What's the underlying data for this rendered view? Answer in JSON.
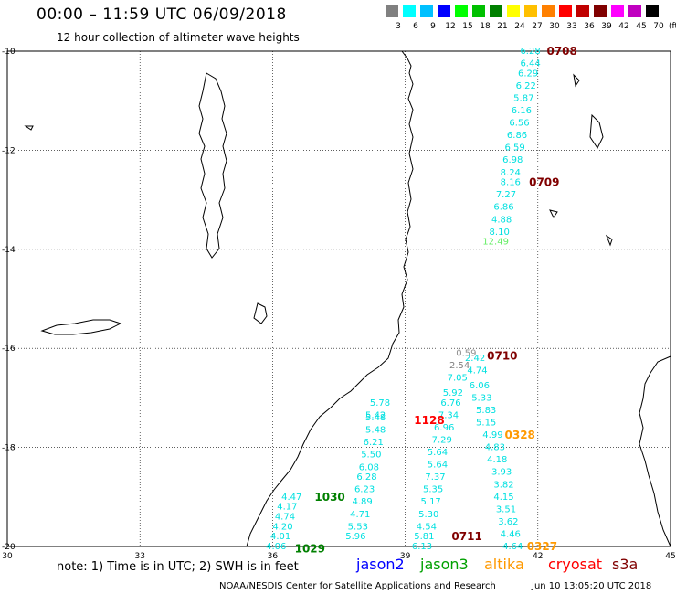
{
  "header": {
    "title": "00:00 – 11:59 UTC 06/09/2018",
    "subtitle": "12 hour collection of altimeter wave heights"
  },
  "colorbar": {
    "labels": [
      "3",
      "6",
      "9",
      "12",
      "15",
      "18",
      "21",
      "24",
      "27",
      "30",
      "33",
      "36",
      "39",
      "42",
      "45",
      "70"
    ],
    "unit": "(ft)",
    "colors": [
      "#808080",
      "#00ffff",
      "#00c0ff",
      "#0000ff",
      "#00ff00",
      "#00c000",
      "#008000",
      "#ffff00",
      "#ffc000",
      "#ff8000",
      "#ff0000",
      "#c00000",
      "#800000",
      "#ff00ff",
      "#c000c0",
      "#000000"
    ]
  },
  "axes": {
    "x_ticks": [
      "30",
      "33",
      "36",
      "39",
      "42",
      "45"
    ],
    "y_ticks": [
      "-10",
      "-12",
      "-14",
      "-16",
      "-18",
      "-20"
    ],
    "lon_range": [
      30,
      45
    ],
    "lat_range": [
      -20,
      -10
    ]
  },
  "wave_labels": [
    {
      "text": "6.28",
      "lon": 41.6,
      "lat": -10.0,
      "color": "#00e0e0"
    },
    {
      "text": "6.44",
      "lon": 41.6,
      "lat": -10.25,
      "color": "#00e0e0"
    },
    {
      "text": "6.29",
      "lon": 41.55,
      "lat": -10.45,
      "color": "#00e0e0"
    },
    {
      "text": "6.22",
      "lon": 41.5,
      "lat": -10.7,
      "color": "#00e0e0"
    },
    {
      "text": "5.87",
      "lon": 41.45,
      "lat": -10.95,
      "color": "#00e0e0"
    },
    {
      "text": "6.16",
      "lon": 41.4,
      "lat": -11.2,
      "color": "#00e0e0"
    },
    {
      "text": "6.56",
      "lon": 41.35,
      "lat": -11.45,
      "color": "#00e0e0"
    },
    {
      "text": "6.86",
      "lon": 41.3,
      "lat": -11.7,
      "color": "#00e0e0"
    },
    {
      "text": "6.59",
      "lon": 41.25,
      "lat": -11.95,
      "color": "#00e0e0"
    },
    {
      "text": "6.98",
      "lon": 41.2,
      "lat": -12.2,
      "color": "#00e0e0"
    },
    {
      "text": "8.24",
      "lon": 41.15,
      "lat": -12.45,
      "color": "#00e0e0"
    },
    {
      "text": "8.16",
      "lon": 41.15,
      "lat": -12.65,
      "color": "#00e0e0"
    },
    {
      "text": "7.27",
      "lon": 41.05,
      "lat": -12.9,
      "color": "#00e0e0"
    },
    {
      "text": "6.86",
      "lon": 41.0,
      "lat": -13.15,
      "color": "#00e0e0"
    },
    {
      "text": "4.88",
      "lon": 40.95,
      "lat": -13.4,
      "color": "#00e0e0"
    },
    {
      "text": "8.10",
      "lon": 40.9,
      "lat": -13.65,
      "color": "#00e0e0"
    },
    {
      "text": "12.49",
      "lon": 40.75,
      "lat": -13.85,
      "color": "#66ee66"
    },
    {
      "text": "0.59",
      "lon": 40.15,
      "lat": -16.1,
      "color": "#909090"
    },
    {
      "text": "2.42",
      "lon": 40.35,
      "lat": -16.2,
      "color": "#00e0e0"
    },
    {
      "text": "2.54",
      "lon": 40.0,
      "lat": -16.35,
      "color": "#808080"
    },
    {
      "text": "4.74",
      "lon": 40.4,
      "lat": -16.45,
      "color": "#00e0e0"
    },
    {
      "text": "7.05",
      "lon": 39.95,
      "lat": -16.6,
      "color": "#00e0e0"
    },
    {
      "text": "6.06",
      "lon": 40.45,
      "lat": -16.75,
      "color": "#00e0e0"
    },
    {
      "text": "5.92",
      "lon": 39.85,
      "lat": -16.9,
      "color": "#00e0e0"
    },
    {
      "text": "5.33",
      "lon": 40.5,
      "lat": -17.0,
      "color": "#00e0e0"
    },
    {
      "text": "6.76",
      "lon": 39.8,
      "lat": -17.1,
      "color": "#00e0e0"
    },
    {
      "text": "5.83",
      "lon": 40.6,
      "lat": -17.25,
      "color": "#00e0e0"
    },
    {
      "text": "7.34",
      "lon": 39.75,
      "lat": -17.35,
      "color": "#00e0e0"
    },
    {
      "text": "5.15",
      "lon": 40.6,
      "lat": -17.5,
      "color": "#00e0e0"
    },
    {
      "text": "6.96",
      "lon": 39.65,
      "lat": -17.6,
      "color": "#00e0e0"
    },
    {
      "text": "4.99",
      "lon": 40.75,
      "lat": -17.75,
      "color": "#00e0e0"
    },
    {
      "text": "7.29",
      "lon": 39.6,
      "lat": -17.85,
      "color": "#00e0e0"
    },
    {
      "text": "4.83",
      "lon": 40.8,
      "lat": -18.0,
      "color": "#00e0e0"
    },
    {
      "text": "5.64",
      "lon": 39.5,
      "lat": -18.1,
      "color": "#00e0e0"
    },
    {
      "text": "4.18",
      "lon": 40.85,
      "lat": -18.25,
      "color": "#00e0e0"
    },
    {
      "text": "5.64",
      "lon": 39.5,
      "lat": -18.35,
      "color": "#00e0e0"
    },
    {
      "text": "3.93",
      "lon": 40.95,
      "lat": -18.5,
      "color": "#00e0e0"
    },
    {
      "text": "7.37",
      "lon": 39.45,
      "lat": -18.6,
      "color": "#00e0e0"
    },
    {
      "text": "3.82",
      "lon": 41.0,
      "lat": -18.75,
      "color": "#00e0e0"
    },
    {
      "text": "5.35",
      "lon": 39.4,
      "lat": -18.85,
      "color": "#00e0e0"
    },
    {
      "text": "4.15",
      "lon": 41.0,
      "lat": -19.0,
      "color": "#00e0e0"
    },
    {
      "text": "5.17",
      "lon": 39.35,
      "lat": -19.1,
      "color": "#00e0e0"
    },
    {
      "text": "3.51",
      "lon": 41.05,
      "lat": -19.25,
      "color": "#00e0e0"
    },
    {
      "text": "5.30",
      "lon": 39.3,
      "lat": -19.35,
      "color": "#00e0e0"
    },
    {
      "text": "3.62",
      "lon": 41.1,
      "lat": -19.5,
      "color": "#00e0e0"
    },
    {
      "text": "4.54",
      "lon": 39.25,
      "lat": -19.6,
      "color": "#00e0e0"
    },
    {
      "text": "4.46",
      "lon": 41.15,
      "lat": -19.75,
      "color": "#00e0e0"
    },
    {
      "text": "5.81",
      "lon": 39.2,
      "lat": -19.8,
      "color": "#00e0e0"
    },
    {
      "text": "4.64",
      "lon": 41.2,
      "lat": -20.0,
      "color": "#00e0e0"
    },
    {
      "text": "6.13",
      "lon": 39.15,
      "lat": -20.0,
      "color": "#00e0e0"
    },
    {
      "text": "5.78",
      "lon": 38.2,
      "lat": -17.1,
      "color": "#00e0e0"
    },
    {
      "text": "5.42",
      "lon": 38.1,
      "lat": -17.35,
      "color": "#00e0e0"
    },
    {
      "text": "5.48",
      "lon": 38.1,
      "lat": -17.4,
      "color": "#00e0e0"
    },
    {
      "text": "5.48",
      "lon": 38.1,
      "lat": -17.65,
      "color": "#00e0e0"
    },
    {
      "text": "6.21",
      "lon": 38.05,
      "lat": -17.9,
      "color": "#00e0e0"
    },
    {
      "text": "5.50",
      "lon": 38.0,
      "lat": -18.15,
      "color": "#00e0e0"
    },
    {
      "text": "6.08",
      "lon": 37.95,
      "lat": -18.4,
      "color": "#00e0e0"
    },
    {
      "text": "6.28",
      "lon": 37.9,
      "lat": -18.6,
      "color": "#00e0e0"
    },
    {
      "text": "6.23",
      "lon": 37.85,
      "lat": -18.85,
      "color": "#00e0e0"
    },
    {
      "text": "4.89",
      "lon": 37.8,
      "lat": -19.1,
      "color": "#00e0e0"
    },
    {
      "text": "4.71",
      "lon": 37.75,
      "lat": -19.35,
      "color": "#00e0e0"
    },
    {
      "text": "5.53",
      "lon": 37.7,
      "lat": -19.6,
      "color": "#00e0e0"
    },
    {
      "text": "5.96",
      "lon": 37.65,
      "lat": -19.8,
      "color": "#00e0e0"
    },
    {
      "text": "4.47",
      "lon": 36.2,
      "lat": -19.0,
      "color": "#00e0e0"
    },
    {
      "text": "4.17",
      "lon": 36.1,
      "lat": -19.2,
      "color": "#00e0e0"
    },
    {
      "text": "4.74",
      "lon": 36.05,
      "lat": -19.4,
      "color": "#00e0e0"
    },
    {
      "text": "4.20",
      "lon": 36.0,
      "lat": -19.6,
      "color": "#00e0e0"
    },
    {
      "text": "4.01",
      "lon": 35.95,
      "lat": -19.8,
      "color": "#00e0e0"
    },
    {
      "text": "4.06",
      "lon": 35.85,
      "lat": -20.0,
      "color": "#00e0e0"
    }
  ],
  "time_labels": [
    {
      "text": "0708",
      "lon": 42.2,
      "lat": -10.0,
      "color": "#800000"
    },
    {
      "text": "0709",
      "lon": 41.8,
      "lat": -12.65,
      "color": "#800000"
    },
    {
      "text": "0710",
      "lon": 40.85,
      "lat": -16.15,
      "color": "#800000"
    },
    {
      "text": "1128",
      "lon": 39.2,
      "lat": -17.45,
      "color": "#ff0000"
    },
    {
      "text": "0328",
      "lon": 41.25,
      "lat": -17.75,
      "color": "#ff9900"
    },
    {
      "text": "1030",
      "lon": 36.95,
      "lat": -19.0,
      "color": "#008000"
    },
    {
      "text": "0711",
      "lon": 40.05,
      "lat": -19.8,
      "color": "#800000"
    },
    {
      "text": "1029",
      "lon": 36.5,
      "lat": -20.05,
      "color": "#008000"
    },
    {
      "text": "0327",
      "lon": 41.75,
      "lat": -20.0,
      "color": "#ff9900"
    }
  ],
  "footer": {
    "note": "note: 1) Time is in UTC; 2) SWH is in feet",
    "legend": [
      {
        "label": "jason2",
        "color": "#0000ff"
      },
      {
        "label": "jason3",
        "color": "#00a000"
      },
      {
        "label": "altika",
        "color": "#ff9900"
      },
      {
        "label": "cryosat",
        "color": "#ff0000"
      },
      {
        "label": "s3a",
        "color": "#800000"
      }
    ],
    "credit": "NOAA/NESDIS Center for Satellite Applications and Research",
    "generated": "Jun 10 13:05:20 UTC 2018"
  }
}
